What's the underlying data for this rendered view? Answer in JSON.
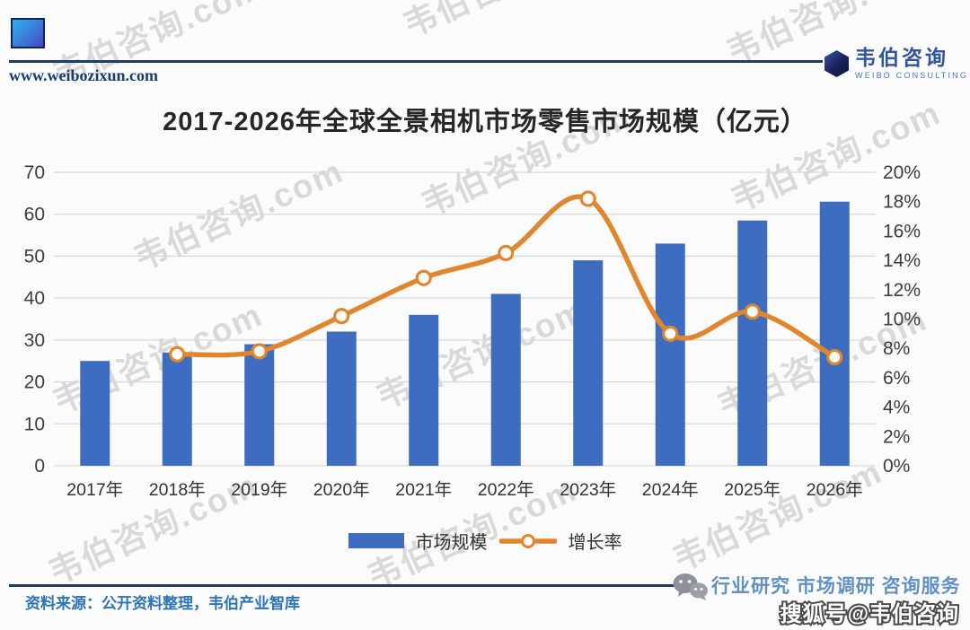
{
  "header": {
    "site_url": "www.weibozixun.com",
    "brand_name": "韦伯咨询",
    "brand_sub": "WEIBO CONSULTING"
  },
  "title": "2017-2026年全球全景相机市场零售市场规模（亿元）",
  "chart_data": {
    "type": "bar+line combo",
    "categories": [
      "2017年",
      "2018年",
      "2019年",
      "2020年",
      "2021年",
      "2022年",
      "2023年",
      "2024年",
      "2025年",
      "2026年"
    ],
    "series": [
      {
        "name": "市场规模",
        "type": "bar",
        "axis": "left",
        "color": "#3e6cc0",
        "values": [
          25,
          27,
          29,
          32,
          36,
          41,
          49,
          53,
          58.5,
          63
        ]
      },
      {
        "name": "增长率",
        "type": "line",
        "axis": "right",
        "color": "#e0862f",
        "marker": "open-circle",
        "values": [
          null,
          7.6,
          7.8,
          10.2,
          12.8,
          14.5,
          18.2,
          9.0,
          10.5,
          7.4
        ]
      }
    ],
    "left_axis": {
      "min": 0,
      "max": 70,
      "step": 10,
      "ticks": [
        "0",
        "10",
        "20",
        "30",
        "40",
        "50",
        "60",
        "70"
      ]
    },
    "right_axis": {
      "min": 0,
      "max": 20,
      "step": 2,
      "ticks": [
        "0%",
        "2%",
        "4%",
        "6%",
        "8%",
        "10%",
        "12%",
        "14%",
        "16%",
        "18%",
        "20%"
      ],
      "unit": "%"
    },
    "grid": true,
    "gridline_color": "#d9d9d9",
    "legend_position": "bottom"
  },
  "footer": {
    "source": "资料来源：公开资料整理，韦伯产业智库",
    "tagline": "行业研究 市场调研 咨询服务",
    "sohu_watermark": "搜狐号@韦伯咨询"
  },
  "watermark": {
    "text": "韦伯咨询.com"
  }
}
